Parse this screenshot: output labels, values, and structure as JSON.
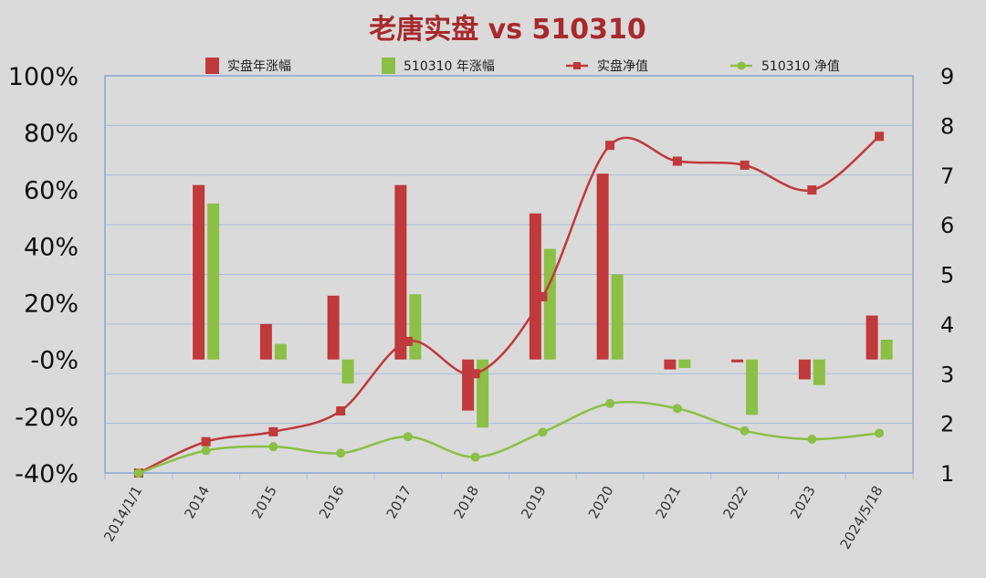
{
  "chart_data": {
    "type": "bar+line",
    "title": "老唐实盘 vs 510310",
    "categories": [
      "2014/1/1",
      "2014",
      "2015",
      "2016",
      "2017",
      "2018",
      "2019",
      "2020",
      "2021",
      "2022",
      "2023",
      "2024/5/18"
    ],
    "bar_series": [
      {
        "name": "实盘年涨幅",
        "color": "#c0393b",
        "values": [
          null,
          61.5,
          12.5,
          22.5,
          61.5,
          -18,
          51.5,
          65.5,
          -3.5,
          -1,
          -7,
          15.5
        ]
      },
      {
        "name": "510310 年涨幅",
        "color": "#8cbf46",
        "values": [
          null,
          55,
          5.5,
          -8.5,
          23,
          -24,
          39,
          30,
          -3,
          -19.5,
          -9,
          7
        ]
      }
    ],
    "line_series": [
      {
        "name": "实盘净值",
        "color": "#c0393b",
        "marker": "square",
        "values": [
          1.0,
          1.63,
          1.83,
          2.25,
          3.65,
          3.0,
          4.55,
          7.6,
          7.28,
          7.2,
          6.7,
          7.78
        ]
      },
      {
        "name": "510310 净值",
        "color": "#8cbf46",
        "marker": "circle",
        "values": [
          1.0,
          1.45,
          1.53,
          1.4,
          1.73,
          1.32,
          1.82,
          2.4,
          2.3,
          1.85,
          1.68,
          1.8
        ]
      }
    ],
    "y_left": {
      "min": -40,
      "max": 100,
      "step": 20,
      "tick_labels": [
        "-40%",
        "-20%",
        "-0%",
        "20%",
        "40%",
        "60%",
        "80%",
        "100%"
      ]
    },
    "y_right": {
      "min": 1,
      "max": 9,
      "step": 1,
      "tick_labels": [
        "1",
        "2",
        "3",
        "4",
        "5",
        "6",
        "7",
        "8",
        "9"
      ]
    },
    "grid": true,
    "legend_position": "top"
  },
  "colors": {
    "title": "#a82a2c",
    "grid": "#a8bddb",
    "plot_border": "#8aa6d2",
    "background": "#dadada"
  }
}
